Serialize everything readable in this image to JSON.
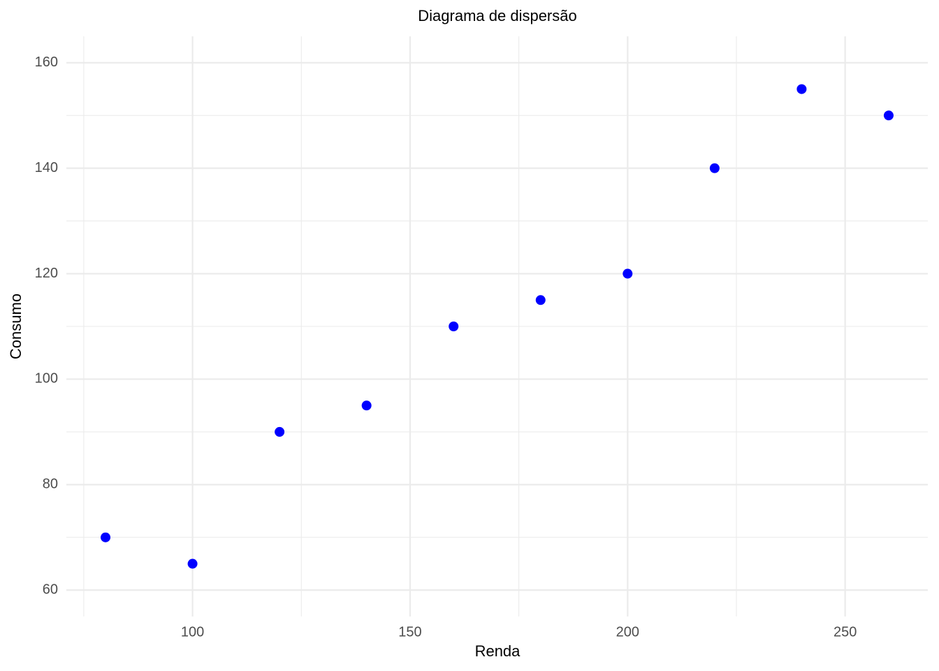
{
  "chart_data": {
    "type": "scatter",
    "title": "Diagrama de dispersão",
    "x_label": "Renda",
    "y_label": "Consumo",
    "x": [
      80,
      100,
      120,
      140,
      160,
      180,
      200,
      220,
      240,
      260
    ],
    "values": [
      70,
      65,
      90,
      95,
      110,
      115,
      120,
      140,
      155,
      150
    ],
    "color": "#0000ff",
    "xlim": [
      71,
      269
    ],
    "ylim": [
      55,
      165
    ],
    "xticks": [
      100,
      150,
      200,
      250
    ],
    "yticks": [
      60,
      80,
      100,
      120,
      140,
      160
    ],
    "xminor": [
      75,
      125,
      175,
      225
    ],
    "yminor": [
      70,
      90,
      110,
      130,
      150
    ],
    "grid": true
  }
}
